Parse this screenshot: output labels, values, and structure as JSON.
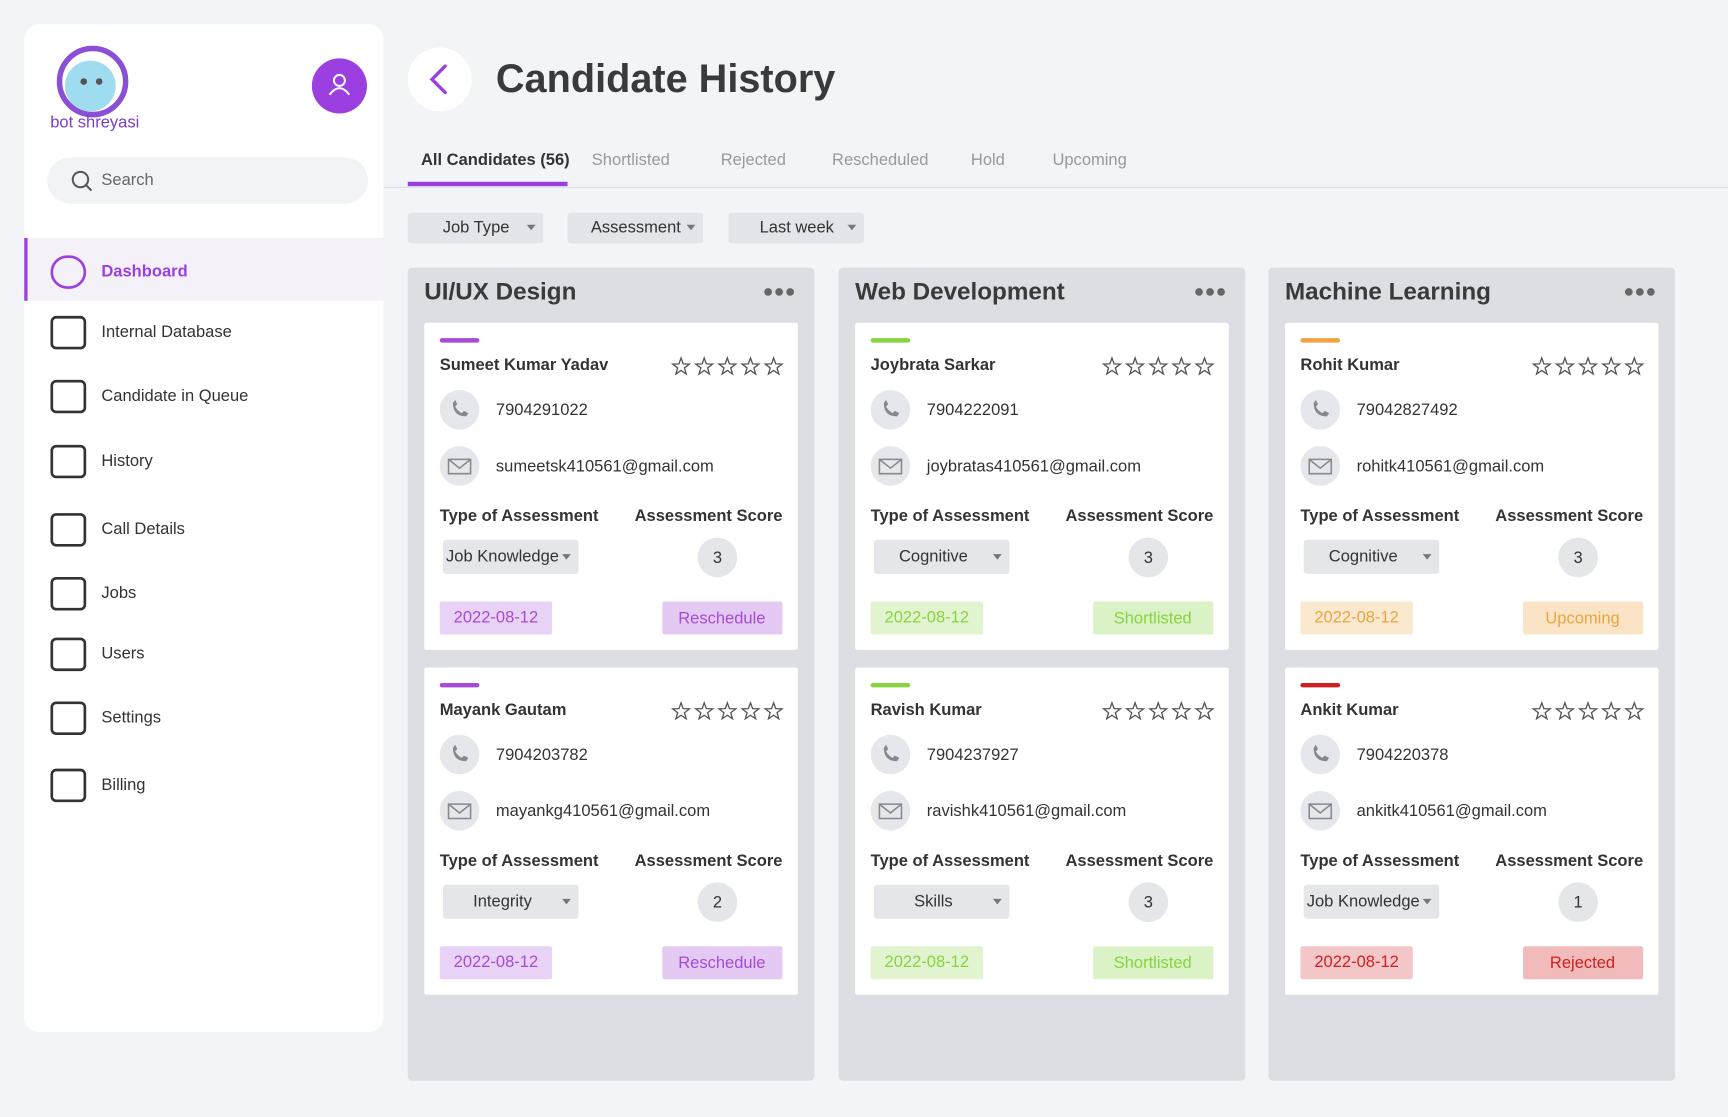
{
  "sidebar": {
    "logo": "bot shreyasi",
    "search_placeholder": "Search",
    "nav": [
      "Dashboard",
      "Internal Database",
      "Candidate in Queue",
      "History",
      "Call Details",
      "Jobs",
      "Users",
      "Settings",
      "Billing"
    ]
  },
  "header": {
    "title": "Candidate History"
  },
  "tabs": [
    "All Candidates (56)",
    "Shortlisted",
    "Rejected",
    "Rescheduled",
    "Hold",
    "Upcoming"
  ],
  "filters": [
    "Job Type",
    "Assessment",
    "Last week"
  ],
  "labels": {
    "type_of_assessment": "Type of Assessment",
    "assessment_score": "Assessment Score"
  },
  "columns": [
    {
      "title": "UI/UX Design",
      "cards": [
        {
          "name": "Sumeet Kumar Yadav",
          "phone": "7904291022",
          "email": "sumeetsk410561@gmail.com",
          "assessment": "Job Knowledge",
          "score": "3",
          "date": "2022-08-12",
          "status": "Reschedule",
          "accent": "#a54bd8"
        },
        {
          "name": "Mayank Gautam",
          "phone": "7904203782",
          "email": "mayankg410561@gmail.com",
          "assessment": "Integrity",
          "score": "2",
          "date": "2022-08-12",
          "status": "Reschedule",
          "accent": "#a54bd8"
        }
      ]
    },
    {
      "title": "Web Development",
      "cards": [
        {
          "name": "Joybrata Sarkar",
          "phone": "7904222091",
          "email": "joybratas410561@gmail.com",
          "assessment": "Cognitive",
          "score": "3",
          "date": "2022-08-12",
          "status": "Shortlisted",
          "accent": "#86d43f"
        },
        {
          "name": "Ravish Kumar",
          "phone": "7904237927",
          "email": "ravishk410561@gmail.com",
          "assessment": "Skills",
          "score": "3",
          "date": "2022-08-12",
          "status": "Shortlisted",
          "accent": "#86d43f"
        }
      ]
    },
    {
      "title": "Machine Learning",
      "cards": [
        {
          "name": "Rohit Kumar",
          "phone": "79042827492",
          "email": "rohitk410561@gmail.com",
          "assessment": "Cognitive",
          "score": "3",
          "date": "2022-08-12",
          "status": "Upcoming",
          "accent": "#eda440"
        },
        {
          "name": "Ankit Kumar",
          "phone": "7904220378",
          "email": "ankitk410561@gmail.com",
          "assessment": "Job Knowledge",
          "score": "1",
          "date": "2022-08-12",
          "status": "Rejected",
          "accent": "#d01f1f"
        }
      ]
    }
  ]
}
